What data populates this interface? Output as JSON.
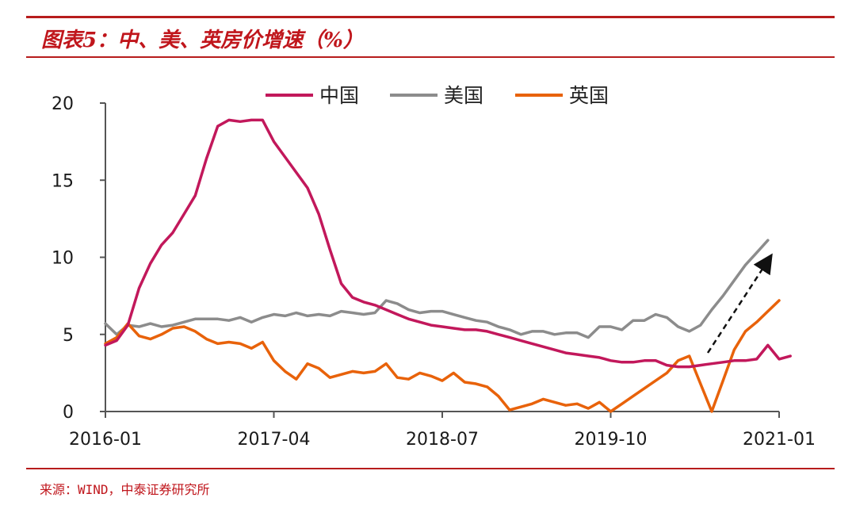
{
  "figure": {
    "title": "图表5：中、美、英房价增速（%）",
    "source": "来源：WIND，中泰证券研究所"
  },
  "chart_data": {
    "type": "line",
    "title": "",
    "xlabel": "",
    "ylabel": "",
    "x_start": "2016-01",
    "x_end": "2021-01",
    "x_ticks": [
      "2016-01",
      "2017-04",
      "2018-07",
      "2019-10",
      "2021-01"
    ],
    "ylim": [
      0,
      20
    ],
    "y_ticks": [
      0,
      5,
      10,
      15,
      20
    ],
    "grid": false,
    "legend_position": "top",
    "annotation": "dashed arrow pointing up-right near end of series",
    "series": [
      {
        "name": "中国",
        "color": "#c2185b",
        "points": [
          [
            "2016-01",
            4.3
          ],
          [
            "2016-02",
            4.6
          ],
          [
            "2016-03",
            5.6
          ],
          [
            "2016-04",
            8.0
          ],
          [
            "2016-05",
            9.6
          ],
          [
            "2016-06",
            10.8
          ],
          [
            "2016-07",
            11.6
          ],
          [
            "2016-08",
            12.8
          ],
          [
            "2016-09",
            14.0
          ],
          [
            "2016-10",
            16.4
          ],
          [
            "2016-11",
            18.5
          ],
          [
            "2016-12",
            18.9
          ],
          [
            "2017-01",
            18.8
          ],
          [
            "2017-02",
            18.9
          ],
          [
            "2017-03",
            18.9
          ],
          [
            "2017-04",
            17.5
          ],
          [
            "2017-05",
            16.5
          ],
          [
            "2017-06",
            15.5
          ],
          [
            "2017-07",
            14.5
          ],
          [
            "2017-08",
            12.8
          ],
          [
            "2017-09",
            10.5
          ],
          [
            "2017-10",
            8.3
          ],
          [
            "2017-11",
            7.4
          ],
          [
            "2017-12",
            7.1
          ],
          [
            "2018-01",
            6.9
          ],
          [
            "2018-02",
            6.6
          ],
          [
            "2018-03",
            6.3
          ],
          [
            "2018-04",
            6.0
          ],
          [
            "2018-05",
            5.8
          ],
          [
            "2018-06",
            5.6
          ],
          [
            "2018-07",
            5.5
          ],
          [
            "2018-08",
            5.4
          ],
          [
            "2018-09",
            5.3
          ],
          [
            "2018-10",
            5.3
          ],
          [
            "2018-11",
            5.2
          ],
          [
            "2018-12",
            5.0
          ],
          [
            "2019-01",
            4.8
          ],
          [
            "2019-02",
            4.6
          ],
          [
            "2019-03",
            4.4
          ],
          [
            "2019-04",
            4.2
          ],
          [
            "2019-05",
            4.0
          ],
          [
            "2019-06",
            3.8
          ],
          [
            "2019-07",
            3.7
          ],
          [
            "2019-08",
            3.6
          ],
          [
            "2019-09",
            3.5
          ],
          [
            "2019-10",
            3.3
          ],
          [
            "2019-11",
            3.2
          ],
          [
            "2019-12",
            3.2
          ],
          [
            "2020-01",
            3.3
          ],
          [
            "2020-02",
            3.3
          ],
          [
            "2020-03",
            3.0
          ],
          [
            "2020-04",
            2.9
          ],
          [
            "2020-05",
            2.9
          ],
          [
            "2020-06",
            3.0
          ],
          [
            "2020-07",
            3.1
          ],
          [
            "2020-08",
            3.2
          ],
          [
            "2020-09",
            3.3
          ],
          [
            "2020-10",
            3.3
          ],
          [
            "2020-11",
            3.4
          ],
          [
            "2020-12",
            4.3
          ],
          [
            "2021-01",
            3.4
          ],
          [
            "2021-02",
            3.6
          ]
        ]
      },
      {
        "name": "美国",
        "color": "#8c8c8c",
        "points": [
          [
            "2016-01",
            5.7
          ],
          [
            "2016-02",
            5.0
          ],
          [
            "2016-03",
            5.6
          ],
          [
            "2016-04",
            5.5
          ],
          [
            "2016-05",
            5.7
          ],
          [
            "2016-06",
            5.5
          ],
          [
            "2016-07",
            5.6
          ],
          [
            "2016-08",
            5.8
          ],
          [
            "2016-09",
            6.0
          ],
          [
            "2016-10",
            6.0
          ],
          [
            "2016-11",
            6.0
          ],
          [
            "2016-12",
            5.9
          ],
          [
            "2017-01",
            6.1
          ],
          [
            "2017-02",
            5.8
          ],
          [
            "2017-03",
            6.1
          ],
          [
            "2017-04",
            6.3
          ],
          [
            "2017-05",
            6.2
          ],
          [
            "2017-06",
            6.4
          ],
          [
            "2017-07",
            6.2
          ],
          [
            "2017-08",
            6.3
          ],
          [
            "2017-09",
            6.2
          ],
          [
            "2017-10",
            6.5
          ],
          [
            "2017-11",
            6.4
          ],
          [
            "2017-12",
            6.3
          ],
          [
            "2018-01",
            6.4
          ],
          [
            "2018-02",
            7.2
          ],
          [
            "2018-03",
            7.0
          ],
          [
            "2018-04",
            6.6
          ],
          [
            "2018-05",
            6.4
          ],
          [
            "2018-06",
            6.5
          ],
          [
            "2018-07",
            6.5
          ],
          [
            "2018-08",
            6.3
          ],
          [
            "2018-09",
            6.1
          ],
          [
            "2018-10",
            5.9
          ],
          [
            "2018-11",
            5.8
          ],
          [
            "2018-12",
            5.5
          ],
          [
            "2019-01",
            5.3
          ],
          [
            "2019-02",
            5.0
          ],
          [
            "2019-03",
            5.2
          ],
          [
            "2019-04",
            5.2
          ],
          [
            "2019-05",
            5.0
          ],
          [
            "2019-06",
            5.1
          ],
          [
            "2019-07",
            5.1
          ],
          [
            "2019-08",
            4.8
          ],
          [
            "2019-09",
            5.5
          ],
          [
            "2019-10",
            5.5
          ],
          [
            "2019-11",
            5.3
          ],
          [
            "2019-12",
            5.9
          ],
          [
            "2020-01",
            5.9
          ],
          [
            "2020-02",
            6.3
          ],
          [
            "2020-03",
            6.1
          ],
          [
            "2020-04",
            5.5
          ],
          [
            "2020-05",
            5.2
          ],
          [
            "2020-06",
            5.6
          ],
          [
            "2020-07",
            6.6
          ],
          [
            "2020-08",
            7.5
          ],
          [
            "2020-09",
            8.5
          ],
          [
            "2020-10",
            9.5
          ],
          [
            "2020-11",
            10.3
          ],
          [
            "2020-12",
            11.1
          ]
        ]
      },
      {
        "name": "英国",
        "color": "#e8620a",
        "points": [
          [
            "2016-01",
            4.4
          ],
          [
            "2016-02",
            4.8
          ],
          [
            "2016-03",
            5.7
          ],
          [
            "2016-04",
            4.9
          ],
          [
            "2016-05",
            4.7
          ],
          [
            "2016-06",
            5.0
          ],
          [
            "2016-07",
            5.4
          ],
          [
            "2016-08",
            5.5
          ],
          [
            "2016-09",
            5.2
          ],
          [
            "2016-10",
            4.7
          ],
          [
            "2016-11",
            4.4
          ],
          [
            "2016-12",
            4.5
          ],
          [
            "2017-01",
            4.4
          ],
          [
            "2017-02",
            4.1
          ],
          [
            "2017-03",
            4.5
          ],
          [
            "2017-04",
            3.3
          ],
          [
            "2017-05",
            2.6
          ],
          [
            "2017-06",
            2.1
          ],
          [
            "2017-07",
            3.1
          ],
          [
            "2017-08",
            2.8
          ],
          [
            "2017-09",
            2.2
          ],
          [
            "2017-10",
            2.4
          ],
          [
            "2017-11",
            2.6
          ],
          [
            "2017-12",
            2.5
          ],
          [
            "2018-01",
            2.6
          ],
          [
            "2018-02",
            3.1
          ],
          [
            "2018-03",
            2.2
          ],
          [
            "2018-04",
            2.1
          ],
          [
            "2018-05",
            2.5
          ],
          [
            "2018-06",
            2.3
          ],
          [
            "2018-07",
            2.0
          ],
          [
            "2018-08",
            2.5
          ],
          [
            "2018-09",
            1.9
          ],
          [
            "2018-10",
            1.8
          ],
          [
            "2018-11",
            1.6
          ],
          [
            "2018-12",
            1.0
          ],
          [
            "2019-01",
            0.1
          ],
          [
            "2019-02",
            0.3
          ],
          [
            "2019-03",
            0.5
          ],
          [
            "2019-04",
            0.8
          ],
          [
            "2019-05",
            0.6
          ],
          [
            "2019-06",
            0.4
          ],
          [
            "2019-07",
            0.5
          ],
          [
            "2019-08",
            0.2
          ],
          [
            "2019-09",
            0.6
          ],
          [
            "2019-10",
            0.0
          ],
          [
            "2019-11",
            0.5
          ],
          [
            "2019-12",
            1.0
          ],
          [
            "2020-01",
            1.5
          ],
          [
            "2020-02",
            2.0
          ],
          [
            "2020-03",
            2.5
          ],
          [
            "2020-04",
            3.3
          ],
          [
            "2020-05",
            3.6
          ],
          [
            "2020-06",
            1.8
          ],
          [
            "2020-07",
            0.0
          ],
          [
            "2020-08",
            2.0
          ],
          [
            "2020-09",
            4.0
          ],
          [
            "2020-10",
            5.2
          ],
          [
            "2020-11",
            5.8
          ],
          [
            "2020-12",
            6.5
          ],
          [
            "2021-01",
            7.2
          ]
        ]
      }
    ]
  }
}
